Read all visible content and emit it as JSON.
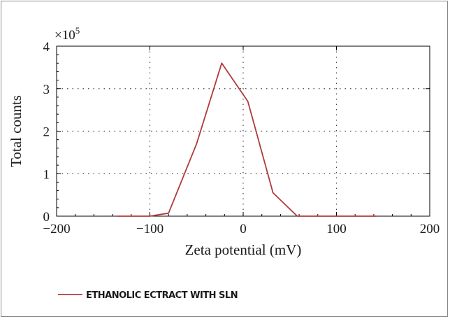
{
  "chart_data": {
    "type": "line",
    "xlabel": "Zeta potential (mV)",
    "ylabel": "Total counts",
    "y_multiplier": "×10",
    "y_multiplier_exp": "5",
    "xlim": [
      -200,
      200
    ],
    "ylim": [
      0,
      4
    ],
    "x_ticks": [
      -200,
      -100,
      0,
      100,
      200
    ],
    "x_tick_labels": [
      "−200",
      "−100",
      "0",
      "100",
      "200"
    ],
    "y_ticks": [
      0,
      1,
      2,
      3,
      4
    ],
    "y_tick_labels": [
      "0",
      "1",
      "2",
      "3",
      "4"
    ],
    "grid": "dotted",
    "legend_position": "bottom-left",
    "series": [
      {
        "name": "ETHANOLIC ECTRACT WITH SLN",
        "color": "#b03a3a",
        "x": [
          -135,
          -100,
          -80,
          -50,
          -23,
          5,
          32,
          58,
          100,
          143
        ],
        "y": [
          0,
          0,
          0.07,
          1.7,
          3.6,
          2.7,
          0.55,
          0,
          0,
          0
        ]
      }
    ]
  }
}
